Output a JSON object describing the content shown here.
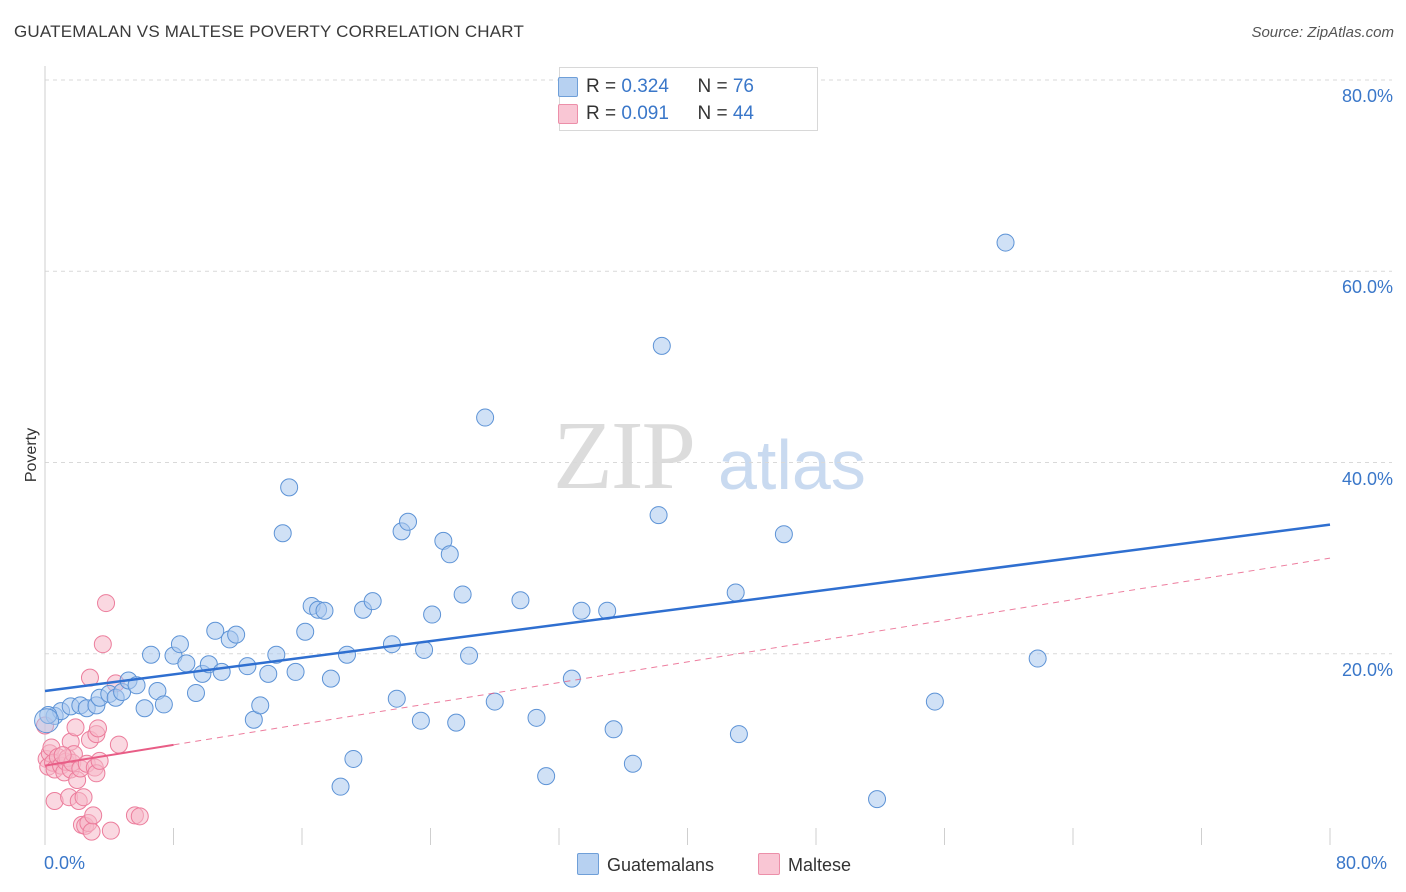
{
  "header": {
    "title": "GUATEMALAN VS MALTESE POVERTY CORRELATION CHART",
    "source": "Source: ZipAtlas.com"
  },
  "watermark": {
    "zip": "ZIP",
    "atlas": "atlas"
  },
  "stats": {
    "guatemalans": {
      "r_label": "R = ",
      "r": "0.324",
      "n_label": "N = ",
      "n": "76"
    },
    "maltese": {
      "r_label": "R = ",
      "r": "0.091",
      "n_label": "N = ",
      "n": "44"
    }
  },
  "legend": {
    "guatemalans": "Guatemalans",
    "maltese": "Maltese"
  },
  "colors": {
    "blue_fill": "#a9c8ee",
    "blue_stroke": "#5d93d6",
    "blue_line": "#2f6fd0",
    "pink_fill": "#f6b8c9",
    "pink_stroke": "#ec7d9c",
    "pink_line": "#e85d86",
    "grid": "#d9d9d9",
    "axis_text": "#3a77c9"
  },
  "chart_data": {
    "type": "scatter",
    "title": "GUATEMALAN VS MALTESE POVERTY CORRELATION CHART",
    "xlabel": "",
    "ylabel": "Poverty",
    "xlim": [
      0,
      80
    ],
    "ylim": [
      0,
      80
    ],
    "x_tick_labels": [
      "0.0%",
      "80.0%"
    ],
    "y_ticks": [
      20,
      40,
      60,
      80
    ],
    "y_tick_labels": [
      "20.0%",
      "40.0%",
      "60.0%",
      "80.0%"
    ],
    "grid": true,
    "legend_position": "bottom-center",
    "series": [
      {
        "name": "Guatemalans",
        "color": "#a9c8ee",
        "r": 0.324,
        "n": 76,
        "trend": {
          "x": [
            0,
            80
          ],
          "y": [
            16.1,
            33.5
          ],
          "style": "solid"
        },
        "points": [
          [
            0.6,
            13.5
          ],
          [
            1.0,
            14.0
          ],
          [
            1.6,
            14.5
          ],
          [
            2.2,
            14.6
          ],
          [
            2.6,
            14.3
          ],
          [
            3.2,
            14.6
          ],
          [
            3.4,
            15.4
          ],
          [
            4.0,
            15.8
          ],
          [
            4.4,
            15.4
          ],
          [
            4.8,
            16.0
          ],
          [
            5.2,
            17.2
          ],
          [
            5.7,
            16.7
          ],
          [
            6.2,
            14.3
          ],
          [
            6.6,
            19.9
          ],
          [
            7.0,
            16.1
          ],
          [
            7.4,
            14.7
          ],
          [
            8.0,
            19.8
          ],
          [
            8.4,
            21.0
          ],
          [
            8.8,
            19.0
          ],
          [
            9.4,
            15.9
          ],
          [
            9.8,
            17.9
          ],
          [
            10.2,
            18.9
          ],
          [
            10.6,
            22.4
          ],
          [
            11.0,
            18.1
          ],
          [
            11.5,
            21.5
          ],
          [
            11.9,
            22.0
          ],
          [
            12.6,
            18.7
          ],
          [
            13.0,
            13.1
          ],
          [
            13.4,
            14.6
          ],
          [
            13.9,
            17.9
          ],
          [
            14.4,
            19.9
          ],
          [
            14.8,
            32.6
          ],
          [
            15.2,
            37.4
          ],
          [
            15.6,
            18.1
          ],
          [
            16.2,
            22.3
          ],
          [
            16.6,
            25.0
          ],
          [
            17.0,
            24.6
          ],
          [
            17.4,
            24.5
          ],
          [
            17.8,
            17.4
          ],
          [
            18.4,
            6.1
          ],
          [
            18.8,
            19.9
          ],
          [
            19.2,
            9.0
          ],
          [
            19.8,
            24.6
          ],
          [
            20.4,
            25.5
          ],
          [
            21.6,
            21.0
          ],
          [
            21.9,
            15.3
          ],
          [
            22.2,
            32.8
          ],
          [
            22.6,
            33.8
          ],
          [
            23.4,
            13.0
          ],
          [
            23.6,
            20.4
          ],
          [
            24.1,
            24.1
          ],
          [
            24.8,
            31.8
          ],
          [
            25.2,
            30.4
          ],
          [
            25.6,
            12.8
          ],
          [
            26.0,
            26.2
          ],
          [
            26.4,
            19.8
          ],
          [
            27.4,
            44.7
          ],
          [
            28.0,
            15.0
          ],
          [
            29.6,
            25.6
          ],
          [
            30.6,
            13.3
          ],
          [
            31.2,
            7.2
          ],
          [
            32.8,
            17.4
          ],
          [
            33.4,
            24.5
          ],
          [
            35.0,
            24.5
          ],
          [
            35.4,
            12.1
          ],
          [
            36.6,
            8.5
          ],
          [
            38.2,
            34.5
          ],
          [
            38.4,
            52.2
          ],
          [
            43.0,
            26.4
          ],
          [
            43.2,
            11.6
          ],
          [
            46.0,
            32.5
          ],
          [
            51.8,
            4.8
          ],
          [
            55.4,
            15.0
          ],
          [
            59.8,
            63.0
          ],
          [
            61.8,
            19.5
          ],
          [
            0.2,
            13.6
          ]
        ]
      },
      {
        "name": "Maltese",
        "color": "#f6b8c9",
        "r": 0.091,
        "n": 44,
        "trend": {
          "x": [
            0,
            80
          ],
          "y": [
            8.3,
            30.0
          ],
          "style": "solid-then-dashed",
          "solid_until_x": 8
        },
        "points": [
          [
            0.1,
            9.0
          ],
          [
            0.2,
            8.2
          ],
          [
            0.3,
            9.6
          ],
          [
            0.4,
            10.2
          ],
          [
            0.5,
            8.6
          ],
          [
            0.6,
            7.9
          ],
          [
            0.6,
            4.6
          ],
          [
            0.8,
            9.2
          ],
          [
            1.0,
            8.3
          ],
          [
            1.2,
            7.6
          ],
          [
            1.3,
            8.7
          ],
          [
            1.4,
            9.1
          ],
          [
            1.5,
            5.0
          ],
          [
            1.6,
            10.8
          ],
          [
            1.6,
            7.9
          ],
          [
            1.7,
            8.6
          ],
          [
            1.8,
            9.5
          ],
          [
            1.9,
            12.3
          ],
          [
            2.0,
            6.8
          ],
          [
            2.1,
            4.6
          ],
          [
            2.2,
            8.0
          ],
          [
            2.3,
            2.1
          ],
          [
            2.4,
            5.0
          ],
          [
            2.5,
            2.0
          ],
          [
            2.6,
            8.5
          ],
          [
            2.7,
            2.3
          ],
          [
            2.8,
            17.5
          ],
          [
            2.8,
            11.0
          ],
          [
            2.9,
            1.4
          ],
          [
            3.0,
            3.1
          ],
          [
            3.1,
            8.1
          ],
          [
            3.2,
            7.5
          ],
          [
            3.2,
            11.6
          ],
          [
            3.3,
            12.2
          ],
          [
            3.4,
            8.8
          ],
          [
            3.6,
            21.0
          ],
          [
            3.8,
            25.3
          ],
          [
            4.1,
            1.5
          ],
          [
            4.4,
            16.9
          ],
          [
            4.6,
            10.5
          ],
          [
            5.6,
            3.1
          ],
          [
            5.9,
            3.0
          ],
          [
            0.0,
            12.5
          ],
          [
            1.1,
            9.4
          ]
        ]
      }
    ]
  }
}
